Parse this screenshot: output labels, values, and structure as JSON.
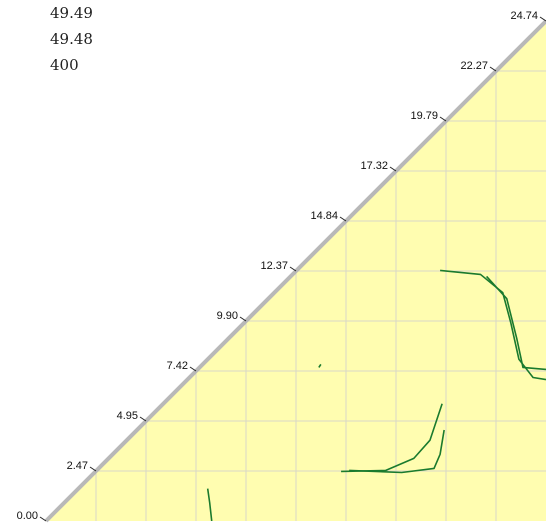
{
  "header_values": [
    "49.49",
    "49.48",
    "400"
  ],
  "chart_data": {
    "type": "line",
    "title": "",
    "xlabel": "",
    "ylabel": "",
    "ticks": [
      "0.00",
      "2.47",
      "4.95",
      "7.42",
      "9.90",
      "12.37",
      "14.84",
      "17.32",
      "19.79",
      "22.27",
      "24.74"
    ],
    "range": [
      0,
      24.74
    ],
    "grid": true,
    "colors": {
      "fill": "#fffdb0",
      "grid": "#d8d8c8",
      "diagonal": "#b8b8b8",
      "curve": "#1a7a2e"
    },
    "series": [
      {
        "points": [
          [
            19.5,
            12.4
          ],
          [
            21.5,
            12.2
          ],
          [
            22.6,
            11.3
          ],
          [
            23.0,
            9.8
          ],
          [
            23.4,
            8.0
          ],
          [
            24.1,
            7.1
          ],
          [
            24.74,
            7.0
          ]
        ]
      },
      {
        "points": [
          [
            21.8,
            12.1
          ],
          [
            22.8,
            11.0
          ],
          [
            23.3,
            9.0
          ],
          [
            23.6,
            7.6
          ],
          [
            24.74,
            7.5
          ]
        ]
      },
      {
        "points": [
          [
            14.6,
            2.45
          ],
          [
            16.8,
            2.5
          ],
          [
            18.2,
            3.1
          ],
          [
            19.0,
            4.0
          ],
          [
            19.6,
            5.8
          ]
        ]
      },
      {
        "points": [
          [
            15.0,
            2.5
          ],
          [
            17.6,
            2.4
          ],
          [
            19.2,
            2.6
          ],
          [
            19.5,
            3.3
          ],
          [
            19.7,
            4.5
          ]
        ]
      },
      {
        "points": [
          [
            8.0,
            1.6
          ],
          [
            8.1,
            0.9
          ],
          [
            8.2,
            0.0
          ]
        ]
      },
      {
        "points": [
          [
            13.5,
            7.6
          ],
          [
            13.6,
            7.75
          ]
        ]
      }
    ]
  }
}
